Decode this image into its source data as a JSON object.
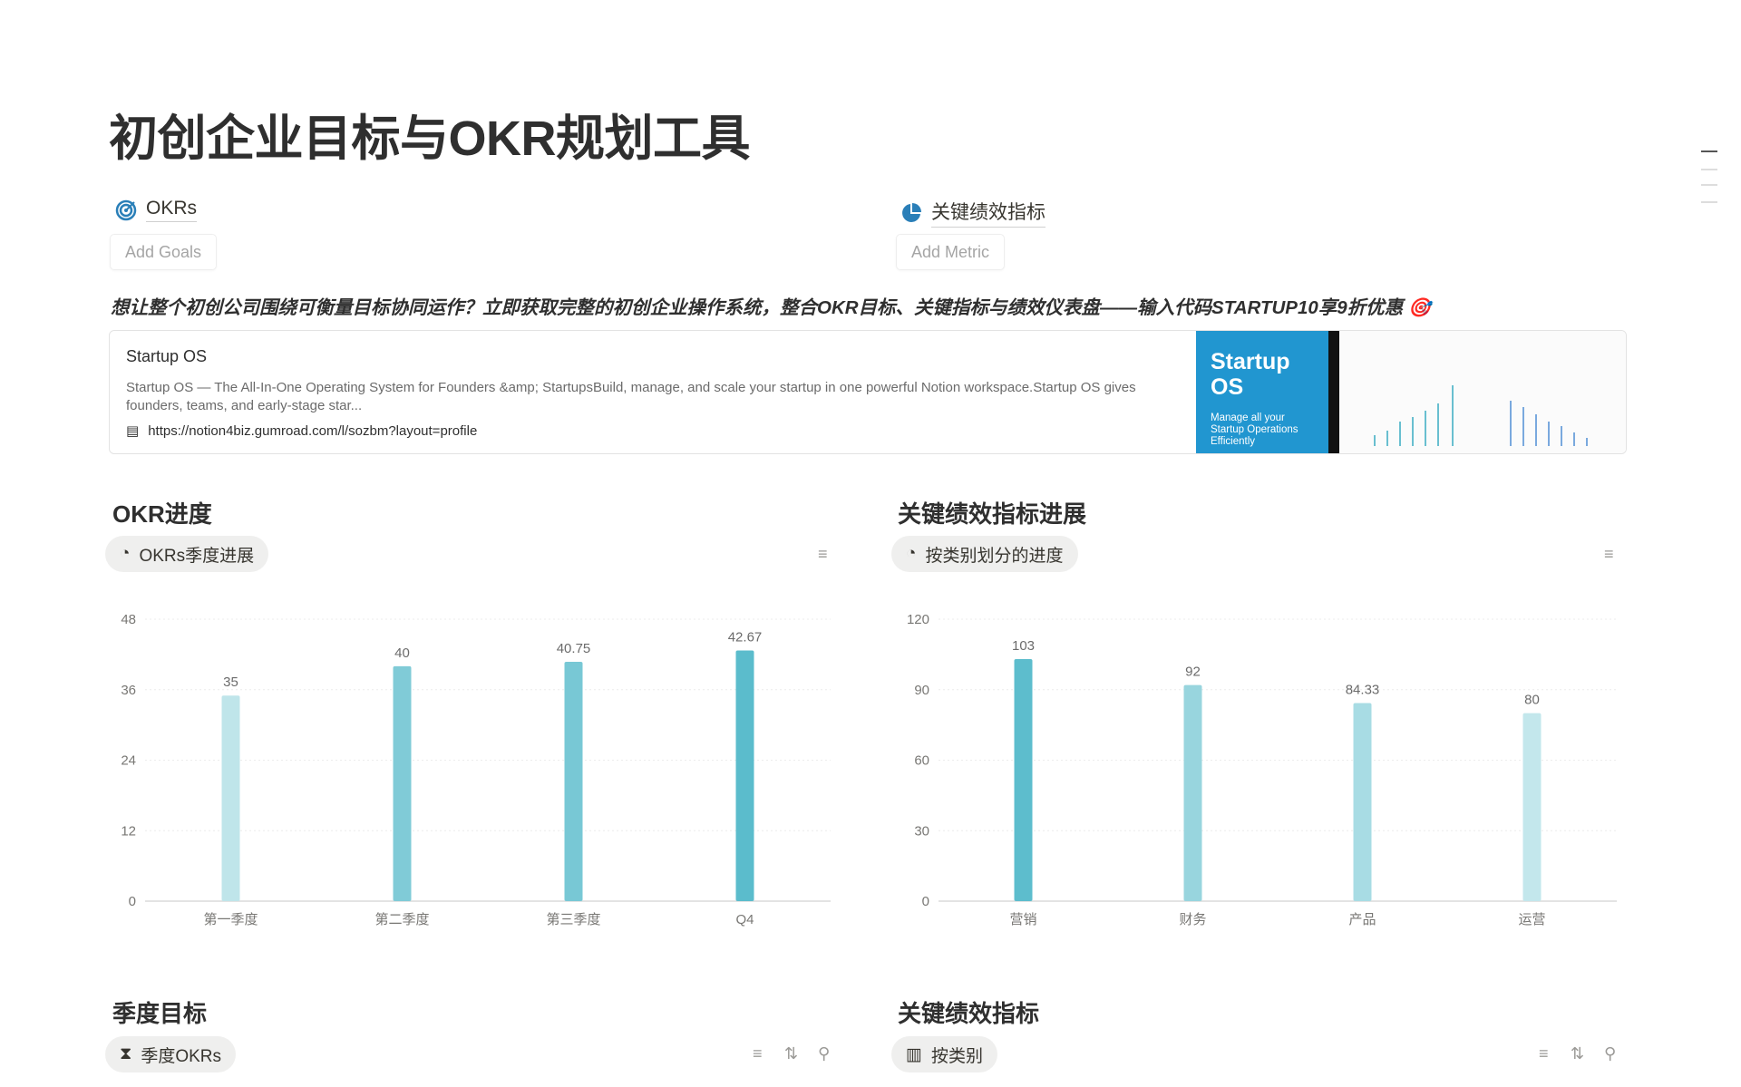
{
  "page": {
    "title": "初创企业目标与OKR规划工具"
  },
  "links": {
    "okrs": {
      "label": "OKRs",
      "icon": "target-icon",
      "button": "Add Goals"
    },
    "kpi": {
      "label": "关键绩效指标",
      "icon": "pie-chart-icon",
      "button": "Add Metric"
    }
  },
  "promo": {
    "text": "想让整个初创公司围绕可衡量目标协同运作？立即获取完整的初创企业操作系统，整合OKR目标、关键指标与绩效仪表盘——输入代码STARTUP10享9折优惠 🎯"
  },
  "bookmark": {
    "title": "Startup OS",
    "description": "Startup OS — The All-In-One Operating System for Founders &amp; StartupsBuild, manage, and scale your startup in one powerful Notion workspace.Startup OS gives founders, teams, and early-stage star...",
    "url": "https://notion4biz.gumroad.com/l/sozbm?layout=profile",
    "thumb_title": "Startup OS",
    "thumb_sub": "Manage all your Startup Operations Efficiently",
    "thumb_color": "#2196d0"
  },
  "sections": {
    "okr_progress": {
      "heading": "OKR进度",
      "view": "OKRs季度进展"
    },
    "kpi_progress": {
      "heading": "关键绩效指标进展",
      "view": "按类别划分的进度"
    },
    "quarterly": {
      "heading": "季度目标",
      "view": "季度OKRs"
    },
    "kpi": {
      "heading": "关键绩效指标",
      "view": "按类别"
    }
  },
  "chart_data": [
    {
      "type": "bar",
      "categories": [
        "第一季度",
        "第二季度",
        "第三季度",
        "Q4"
      ],
      "values": [
        35,
        40,
        40.75,
        42.67
      ],
      "yticks": [
        0,
        12,
        24,
        36,
        48
      ],
      "ylim": [
        0,
        48
      ],
      "grid": true,
      "colors": [
        "#bfe5ea",
        "#80cbd7",
        "#78c8d5",
        "#5bbccc"
      ]
    },
    {
      "type": "bar",
      "categories": [
        "营销",
        "财务",
        "产品",
        "运营"
      ],
      "values": [
        103,
        92,
        84.33,
        80
      ],
      "yticks": [
        0,
        30,
        60,
        90,
        120
      ],
      "ylim": [
        0,
        120
      ],
      "grid": true,
      "colors": [
        "#5dbdcd",
        "#98d5de",
        "#a8dce4",
        "#c3e7ec"
      ]
    }
  ]
}
